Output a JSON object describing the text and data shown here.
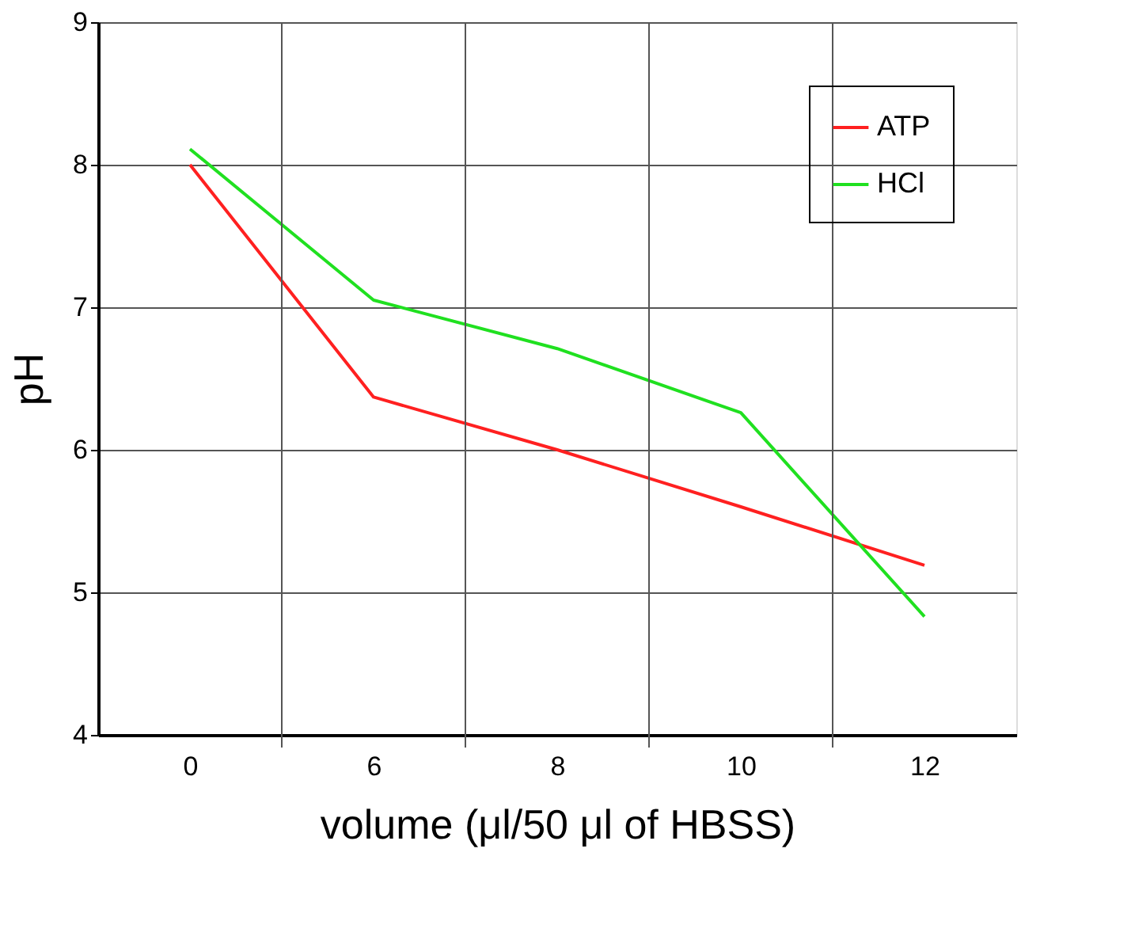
{
  "chart_data": {
    "type": "line",
    "xlabel": "volume (μl/50 μl of HBSS)",
    "ylabel": "pH",
    "categories": [
      "0",
      "6",
      "8",
      "10",
      "12"
    ],
    "series": [
      {
        "name": "ATP",
        "color": "#ff2020",
        "values": [
          8.0,
          6.37,
          6.0,
          5.6,
          5.19
        ]
      },
      {
        "name": "HCl",
        "color": "#20e020",
        "values": [
          8.11,
          7.05,
          6.71,
          6.26,
          4.83
        ]
      }
    ],
    "ylim": [
      4,
      9
    ],
    "yticks": [
      4,
      5,
      6,
      7,
      8,
      9
    ],
    "grid": true,
    "legend": "top right",
    "marker": "none",
    "line_style": "solid"
  }
}
